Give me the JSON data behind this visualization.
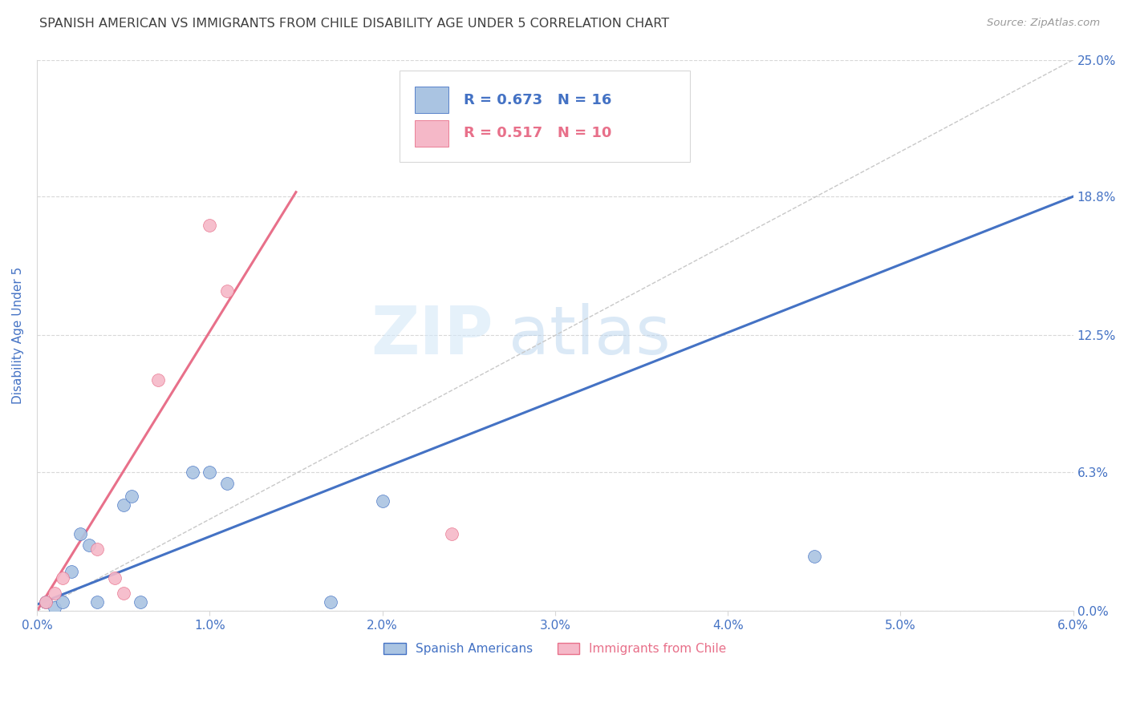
{
  "title": "SPANISH AMERICAN VS IMMIGRANTS FROM CHILE DISABILITY AGE UNDER 5 CORRELATION CHART",
  "source": "Source: ZipAtlas.com",
  "ylabel": "Disability Age Under 5",
  "watermark_zip": "ZIP",
  "watermark_atlas": "atlas",
  "x_tick_labels": [
    "0.0%",
    "1.0%",
    "2.0%",
    "3.0%",
    "4.0%",
    "5.0%",
    "6.0%"
  ],
  "y_tick_labels": [
    "0.0%",
    "6.3%",
    "12.5%",
    "18.8%",
    "25.0%"
  ],
  "x_tick_vals": [
    0.0,
    1.0,
    2.0,
    3.0,
    4.0,
    5.0,
    6.0
  ],
  "y_tick_vals": [
    0.0,
    6.3,
    12.5,
    18.8,
    25.0
  ],
  "xlim": [
    0.0,
    6.0
  ],
  "ylim": [
    0.0,
    25.0
  ],
  "blue_R": 0.673,
  "blue_N": 16,
  "pink_R": 0.517,
  "pink_N": 10,
  "legend_label_blue": "Spanish Americans",
  "legend_label_pink": "Immigrants from Chile",
  "blue_color": "#aac4e2",
  "pink_color": "#f5b8c8",
  "blue_line_color": "#4472c4",
  "pink_line_color": "#e8708a",
  "diag_line_color": "#c8c8c8",
  "background_color": "#ffffff",
  "grid_color": "#d8d8d8",
  "axis_label_color": "#4472c4",
  "title_color": "#404040",
  "blue_points_x": [
    0.05,
    0.1,
    0.15,
    0.2,
    0.25,
    0.3,
    0.35,
    0.5,
    0.55,
    0.6,
    0.9,
    1.0,
    1.1,
    1.7,
    2.0,
    4.5
  ],
  "blue_points_y": [
    0.4,
    0.15,
    0.4,
    1.8,
    3.5,
    3.0,
    0.4,
    4.8,
    5.2,
    0.4,
    6.3,
    6.3,
    5.8,
    0.4,
    5.0,
    2.5
  ],
  "pink_points_x": [
    0.05,
    0.1,
    0.15,
    0.35,
    0.45,
    0.5,
    0.7,
    1.0,
    1.1,
    2.4
  ],
  "pink_points_y": [
    0.4,
    0.8,
    1.5,
    2.8,
    1.5,
    0.8,
    10.5,
    17.5,
    14.5,
    3.5
  ],
  "blue_reg_x0": 0.0,
  "blue_reg_y0": 0.3,
  "blue_reg_x1": 6.0,
  "blue_reg_y1": 18.8,
  "pink_reg_x0": 0.0,
  "pink_reg_y0": 0.0,
  "pink_reg_x1": 1.5,
  "pink_reg_y1": 19.0,
  "diag_x0": 0.0,
  "diag_y0": 0.0,
  "diag_x1": 6.0,
  "diag_y1": 25.0,
  "marker_size": 130,
  "marker_linewidth": 0.5
}
